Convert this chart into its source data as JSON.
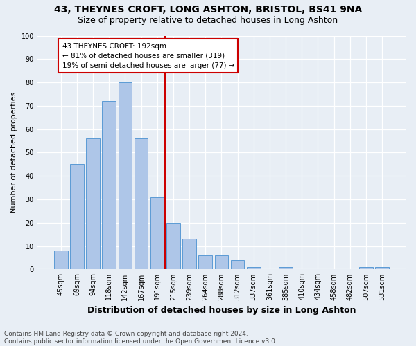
{
  "title": "43, THEYNES CROFT, LONG ASHTON, BRISTOL, BS41 9NA",
  "subtitle": "Size of property relative to detached houses in Long Ashton",
  "xlabel": "Distribution of detached houses by size in Long Ashton",
  "ylabel": "Number of detached properties",
  "footer_line1": "Contains HM Land Registry data © Crown copyright and database right 2024.",
  "footer_line2": "Contains public sector information licensed under the Open Government Licence v3.0.",
  "bar_labels": [
    "45sqm",
    "69sqm",
    "94sqm",
    "118sqm",
    "142sqm",
    "167sqm",
    "191sqm",
    "215sqm",
    "239sqm",
    "264sqm",
    "288sqm",
    "312sqm",
    "337sqm",
    "361sqm",
    "385sqm",
    "410sqm",
    "434sqm",
    "458sqm",
    "482sqm",
    "507sqm",
    "531sqm"
  ],
  "bar_values": [
    8,
    45,
    56,
    72,
    80,
    56,
    31,
    20,
    13,
    6,
    6,
    4,
    1,
    0,
    1,
    0,
    0,
    0,
    0,
    1,
    1
  ],
  "bar_color": "#aec6e8",
  "bar_edge_color": "#5b9bd5",
  "vline_color": "#cc0000",
  "vline_position": 6.5,
  "annotation_text": "43 THEYNES CROFT: 192sqm\n← 81% of detached houses are smaller (319)\n19% of semi-detached houses are larger (77) →",
  "annotation_box_color": "#cc0000",
  "annotation_fontsize": 7.5,
  "background_color": "#e8eef5",
  "ylim": [
    0,
    100
  ],
  "title_fontsize": 10,
  "subtitle_fontsize": 9,
  "xlabel_fontsize": 9,
  "ylabel_fontsize": 8,
  "footer_fontsize": 6.5,
  "tick_fontsize": 7
}
